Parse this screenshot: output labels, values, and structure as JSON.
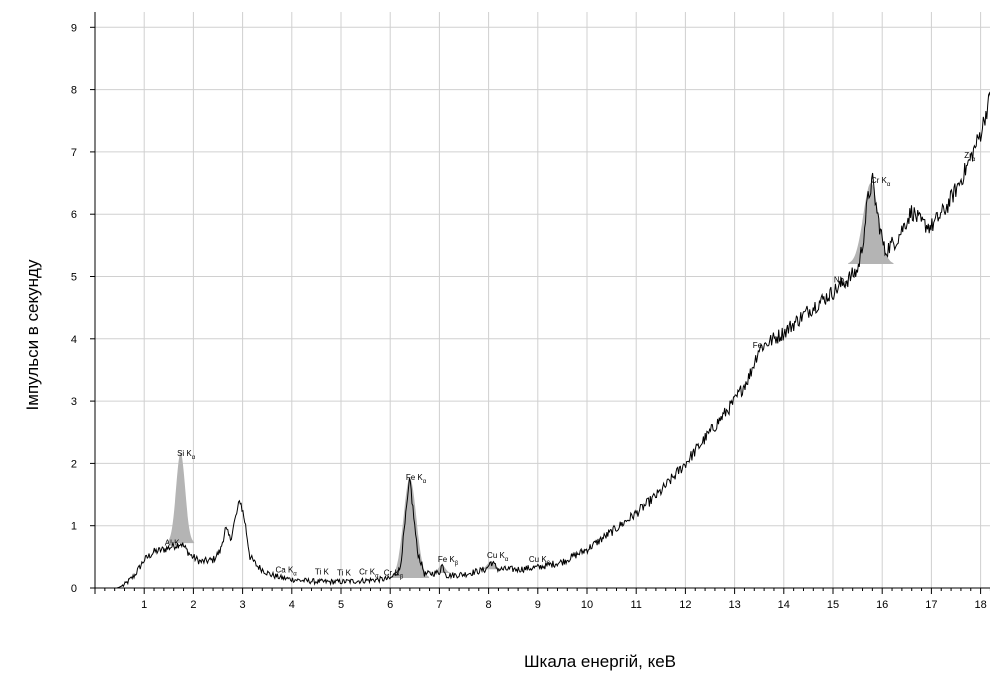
{
  "chart_data": {
    "type": "line",
    "xlabel": "Шкала енергій, кеВ",
    "ylabel": "Імпульси в секунду",
    "xlim": [
      0,
      18.2
    ],
    "ylim": [
      0,
      9.3
    ],
    "grid": true,
    "x_ticks": [
      "1",
      "2",
      "3",
      "4",
      "5",
      "6",
      "7",
      "8",
      "9",
      "10",
      "11",
      "12",
      "13",
      "14",
      "15",
      "16",
      "17",
      "18"
    ],
    "y_ticks": [
      "0",
      "1",
      "2",
      "3",
      "4",
      "5",
      "6",
      "7",
      "8",
      "9"
    ],
    "spectrum_control_points": [
      [
        0.45,
        0.0
      ],
      [
        0.6,
        0.05
      ],
      [
        0.8,
        0.2
      ],
      [
        1.0,
        0.45
      ],
      [
        1.2,
        0.58
      ],
      [
        1.45,
        0.63
      ],
      [
        1.6,
        0.68
      ],
      [
        1.75,
        0.72
      ],
      [
        1.95,
        0.52
      ],
      [
        2.15,
        0.42
      ],
      [
        2.4,
        0.45
      ],
      [
        2.55,
        0.6
      ],
      [
        2.65,
        0.95
      ],
      [
        2.75,
        0.78
      ],
      [
        2.85,
        1.1
      ],
      [
        2.95,
        1.42
      ],
      [
        3.05,
        1.05
      ],
      [
        3.15,
        0.5
      ],
      [
        3.3,
        0.35
      ],
      [
        3.55,
        0.22
      ],
      [
        3.8,
        0.16
      ],
      [
        4.2,
        0.12
      ],
      [
        4.6,
        0.1
      ],
      [
        5.0,
        0.1
      ],
      [
        5.5,
        0.12
      ],
      [
        6.0,
        0.15
      ],
      [
        6.2,
        0.3
      ],
      [
        6.4,
        1.75
      ],
      [
        6.55,
        0.6
      ],
      [
        6.7,
        0.22
      ],
      [
        7.0,
        0.25
      ],
      [
        7.05,
        0.38
      ],
      [
        7.15,
        0.2
      ],
      [
        7.5,
        0.22
      ],
      [
        7.95,
        0.3
      ],
      [
        8.05,
        0.42
      ],
      [
        8.2,
        0.3
      ],
      [
        8.6,
        0.3
      ],
      [
        9.0,
        0.33
      ],
      [
        9.5,
        0.42
      ],
      [
        10.0,
        0.62
      ],
      [
        10.5,
        0.9
      ],
      [
        11.0,
        1.2
      ],
      [
        11.5,
        1.55
      ],
      [
        12.0,
        2.0
      ],
      [
        12.5,
        2.5
      ],
      [
        13.0,
        3.0
      ],
      [
        13.3,
        3.4
      ],
      [
        13.5,
        3.85
      ],
      [
        13.7,
        3.95
      ],
      [
        14.0,
        4.1
      ],
      [
        14.5,
        4.45
      ],
      [
        15.0,
        4.75
      ],
      [
        15.3,
        4.95
      ],
      [
        15.5,
        5.1
      ],
      [
        15.6,
        5.5
      ],
      [
        15.7,
        6.2
      ],
      [
        15.8,
        6.55
      ],
      [
        15.9,
        6.0
      ],
      [
        16.05,
        5.4
      ],
      [
        16.3,
        5.6
      ],
      [
        16.6,
        6.05
      ],
      [
        16.8,
        5.85
      ],
      [
        17.0,
        5.8
      ],
      [
        17.3,
        6.1
      ],
      [
        17.6,
        6.55
      ],
      [
        17.8,
        6.9
      ],
      [
        18.0,
        7.3
      ],
      [
        18.2,
        7.9
      ]
    ],
    "peak_fills": [
      {
        "center": 1.74,
        "halfwidth": 0.12,
        "height": 1.45,
        "shoulder": 0.72
      },
      {
        "center": 6.4,
        "halfwidth": 0.17,
        "height": 1.6,
        "shoulder": 0.16
      },
      {
        "center": 7.05,
        "halfwidth": 0.09,
        "height": 0.13,
        "shoulder": 0.24
      },
      {
        "center": 8.05,
        "halfwidth": 0.1,
        "height": 0.13,
        "shoulder": 0.3
      },
      {
        "center": 15.77,
        "halfwidth": 0.2,
        "height": 1.3,
        "shoulder": 5.2
      }
    ],
    "annotations": [
      {
        "text": "Si K",
        "sub": "α",
        "x": 1.75,
        "y": 2.12
      },
      {
        "text": "Al K",
        "sub": "",
        "x": 1.5,
        "y": 0.68
      },
      {
        "text": "Ca K",
        "sub": "α",
        "x": 3.75,
        "y": 0.25
      },
      {
        "text": "Ti K",
        "sub": "",
        "x": 4.55,
        "y": 0.22
      },
      {
        "text": "Ti K",
        "sub": "",
        "x": 5.0,
        "y": 0.2
      },
      {
        "text": "Cr K",
        "sub": "α",
        "x": 5.45,
        "y": 0.22
      },
      {
        "text": "Cr K",
        "sub": "β",
        "x": 5.95,
        "y": 0.2
      },
      {
        "text": "Fe K",
        "sub": "α",
        "x": 6.4,
        "y": 1.73
      },
      {
        "text": "Fe K",
        "sub": "β",
        "x": 7.05,
        "y": 0.42
      },
      {
        "text": "Cu K",
        "sub": "α",
        "x": 8.05,
        "y": 0.48
      },
      {
        "text": "Cu K",
        "sub": "β",
        "x": 8.9,
        "y": 0.42
      },
      {
        "text": "Fe",
        "sub": "",
        "x": 13.45,
        "y": 3.85
      },
      {
        "text": "Nb",
        "sub": "β",
        "x": 15.1,
        "y": 4.9
      },
      {
        "text": "Cr K",
        "sub": "α",
        "x": 15.85,
        "y": 6.5
      },
      {
        "text": "Zr",
        "sub": "α",
        "x": 17.75,
        "y": 6.9
      }
    ]
  }
}
